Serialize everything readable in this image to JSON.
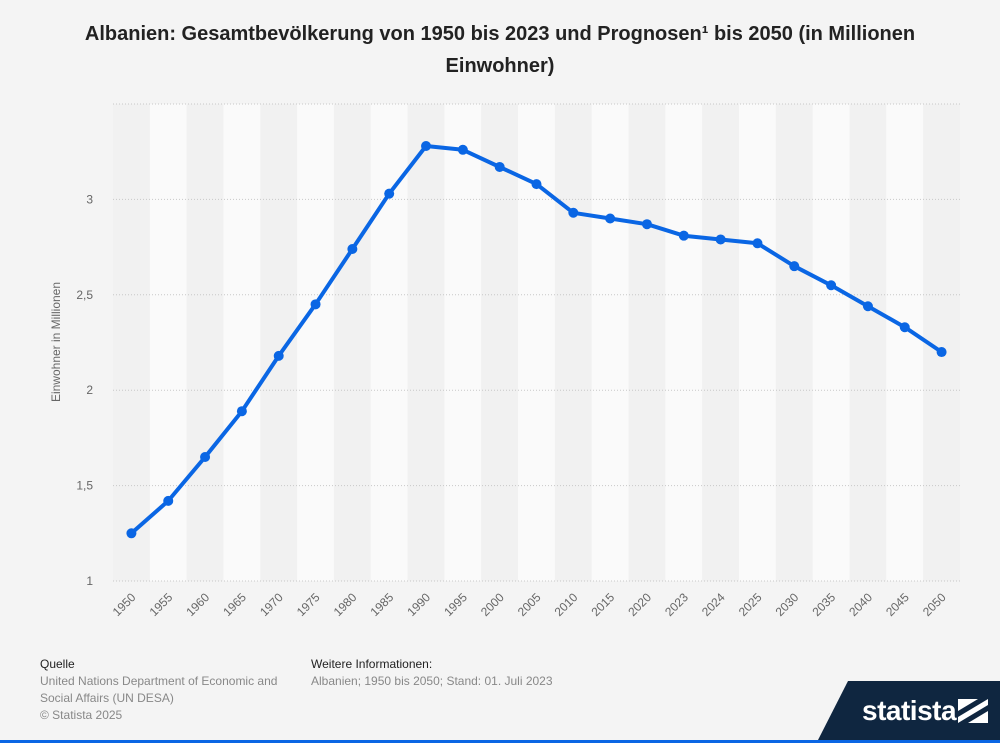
{
  "title": "Albanien: Gesamtbevölkerung von 1950 bis 2023 und Prognosen¹ bis 2050 (in Millionen Einwohner)",
  "footer": {
    "source_heading": "Quelle",
    "source_line1": "United Nations Department of Economic and",
    "source_line2": "Social Affairs (UN DESA)",
    "copyright": "© Statista 2025",
    "info_heading": "Weitere Informationen:",
    "info_text": "Albanien; 1950 bis 2050; Stand: 01. Juli 2023"
  },
  "brand": "statista",
  "colors": {
    "line": "#0a66e4",
    "background": "#f4f4f4",
    "brand_bg": "#0f2640"
  },
  "chart_data": {
    "type": "line",
    "title": "Albanien: Gesamtbevölkerung von 1950 bis 2023 und Prognosen¹ bis 2050 (in Millionen Einwohner)",
    "xlabel": "",
    "ylabel": "Einwohner in Millionen",
    "categories": [
      "1950",
      "1955",
      "1960",
      "1965",
      "1970",
      "1975",
      "1980",
      "1985",
      "1990",
      "1995",
      "2000",
      "2005",
      "2010",
      "2015",
      "2020",
      "2023",
      "2024",
      "2025",
      "2030",
      "2035",
      "2040",
      "2045",
      "2050"
    ],
    "values": [
      1.25,
      1.42,
      1.65,
      1.89,
      2.18,
      2.45,
      2.74,
      3.03,
      3.28,
      3.26,
      3.17,
      3.08,
      2.93,
      2.9,
      2.87,
      2.81,
      2.79,
      2.77,
      2.65,
      2.55,
      2.44,
      2.33,
      2.2
    ],
    "ylim": [
      1,
      3.5
    ],
    "yticks": [
      1,
      1.5,
      2,
      2.5,
      3,
      3.5
    ],
    "ytick_labels": [
      "1",
      "1,5",
      "2",
      "2,5",
      "3",
      ""
    ],
    "grid": true,
    "legend": "none"
  }
}
